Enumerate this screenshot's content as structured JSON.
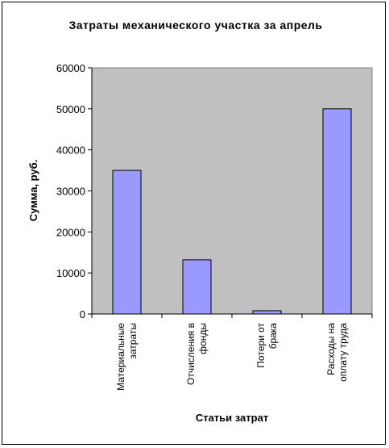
{
  "chart_data": {
    "type": "bar",
    "title": "Затраты механического участка за апрель",
    "xlabel": "Статьи затрат",
    "ylabel": "Сумма, руб.",
    "categories": [
      [
        "Материальные",
        "затраты"
      ],
      [
        "Отчисления в",
        "фонды"
      ],
      [
        "Потери от",
        "брака"
      ],
      [
        "Расходы на",
        "оплату труда"
      ]
    ],
    "values": [
      35000,
      13200,
      800,
      50000
    ],
    "ylim": [
      0,
      60000
    ],
    "yticks": [
      0,
      10000,
      20000,
      30000,
      40000,
      50000,
      60000
    ],
    "grid": false,
    "legend": "none",
    "colors": {
      "plot_area": "#c0c0c0",
      "bar_fill": "#9999ff",
      "bar_stroke": "#000000"
    }
  }
}
